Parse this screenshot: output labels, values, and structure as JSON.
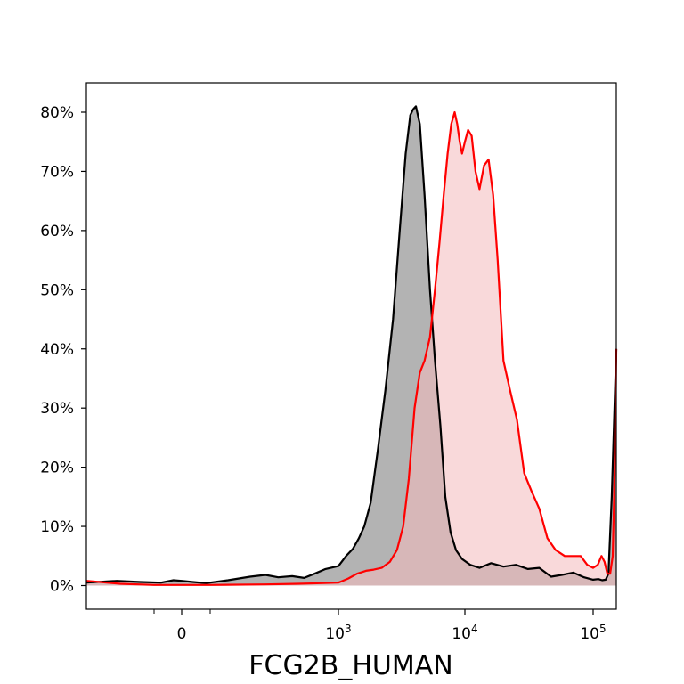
{
  "chart_data": {
    "type": "area",
    "title": "",
    "xlabel": "FCG2B_HUMAN",
    "ylabel": "",
    "x_scale": "biexponential",
    "xlim": [
      -600,
      140000
    ],
    "ylim": [
      -4,
      85
    ],
    "grid": false,
    "legend": "none",
    "x_ticks": [
      {
        "value": 0,
        "label": "0"
      },
      {
        "value": 1000,
        "label": "10",
        "sup": "3"
      },
      {
        "value": 10000,
        "label": "10",
        "sup": "4"
      },
      {
        "value": 100000,
        "label": "10",
        "sup": "5"
      }
    ],
    "x_minor_ticks": [
      -200,
      200
    ],
    "y_ticks": [
      {
        "value": 0,
        "label": "0%"
      },
      {
        "value": 10,
        "label": "10%"
      },
      {
        "value": 20,
        "label": "20%"
      },
      {
        "value": 30,
        "label": "30%"
      },
      {
        "value": 40,
        "label": "40%"
      },
      {
        "value": 50,
        "label": "50%"
      },
      {
        "value": 60,
        "label": "60%"
      },
      {
        "value": 70,
        "label": "70%"
      },
      {
        "value": 80,
        "label": "80%"
      }
    ],
    "series": [
      {
        "color": "#000000",
        "fill": "#808080",
        "x": [
          -600,
          -420,
          -280,
          -150,
          -60,
          0,
          80,
          170,
          250,
          330,
          400,
          470,
          560,
          650,
          740,
          850,
          1000,
          1150,
          1300,
          1450,
          1600,
          1800,
          2050,
          2350,
          2700,
          3050,
          3400,
          3700,
          3900,
          4100,
          4400,
          4800,
          5300,
          5800,
          6400,
          7000,
          7700,
          8500,
          9500,
          11000,
          13000,
          16000,
          20000,
          25000,
          31000,
          38000,
          47000,
          57000,
          70000,
          85000,
          100000,
          108000,
          114000,
          120000,
          125000,
          131000,
          140000
        ],
        "y": [
          0.5,
          0.8,
          0.6,
          0.5,
          0.9,
          0.8,
          0.6,
          0.4,
          0.9,
          1.5,
          1.8,
          1.4,
          1.6,
          1.3,
          2.0,
          2.8,
          3.3,
          5.0,
          6.2,
          8.0,
          10.0,
          14.0,
          23.0,
          33.0,
          45.0,
          60.0,
          73.0,
          79.5,
          80.5,
          81.0,
          78.0,
          66.0,
          50.0,
          38.0,
          27.0,
          15.0,
          9.0,
          6.0,
          4.5,
          3.5,
          3.0,
          3.8,
          3.2,
          3.5,
          2.8,
          3.0,
          1.5,
          1.8,
          2.2,
          1.4,
          1.0,
          1.1,
          0.9,
          1.0,
          2.0,
          15.0,
          40.0
        ]
      },
      {
        "color": "#ff0000",
        "fill": "#f4b9bb",
        "x": [
          -600,
          -400,
          -200,
          0,
          200,
          400,
          600,
          800,
          1000,
          1200,
          1400,
          1650,
          1900,
          2200,
          2550,
          2900,
          3250,
          3600,
          4000,
          4400,
          4800,
          5300,
          5800,
          6300,
          6800,
          7300,
          7800,
          8300,
          8700,
          9100,
          9500,
          10000,
          10600,
          11300,
          12100,
          13000,
          14100,
          15300,
          16600,
          18000,
          20000,
          22500,
          25500,
          29000,
          33000,
          38000,
          44000,
          51000,
          60000,
          70000,
          80000,
          90000,
          100000,
          107000,
          113000,
          118000,
          123000,
          128000,
          133000,
          137000,
          140000
        ],
        "y": [
          0.8,
          0.3,
          0.1,
          0.1,
          0.1,
          0.2,
          0.3,
          0.4,
          0.5,
          1.2,
          2.0,
          2.5,
          2.7,
          3.0,
          4.0,
          6.0,
          10.0,
          18.0,
          30.0,
          36.0,
          38.0,
          42.0,
          50.0,
          58.0,
          66.0,
          73.0,
          78.0,
          80.0,
          78.0,
          75.0,
          73.0,
          75.0,
          77.0,
          76.0,
          70.0,
          67.0,
          71.0,
          72.0,
          66.0,
          55.0,
          38.0,
          33.0,
          28.0,
          19.0,
          16.0,
          13.0,
          8.0,
          6.0,
          5.0,
          5.0,
          5.0,
          3.5,
          3.0,
          3.5,
          5.0,
          4.0,
          2.0,
          2.0,
          5.0,
          20.0,
          40.0
        ]
      }
    ]
  },
  "colors": {
    "axis": "#000000",
    "background": "#ffffff"
  }
}
